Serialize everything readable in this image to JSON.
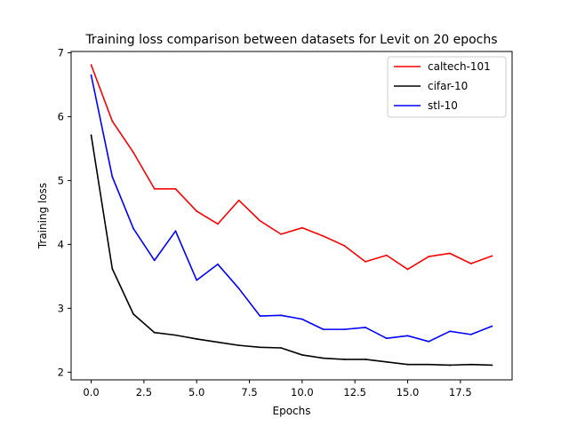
{
  "chart_data": {
    "type": "line",
    "title": "Training loss comparison between datasets for Levit on 20 epochs",
    "xlabel": "Epochs",
    "ylabel": "Training loss",
    "xlim": [
      -0.95,
      19.95
    ],
    "ylim": [
      1.88,
      7.02
    ],
    "xticks": [
      0.0,
      2.5,
      5.0,
      7.5,
      10.0,
      12.5,
      15.0,
      17.5
    ],
    "xtick_labels": [
      "0.0",
      "2.5",
      "5.0",
      "7.5",
      "10.0",
      "12.5",
      "15.0",
      "17.5"
    ],
    "yticks": [
      2,
      3,
      4,
      5,
      6,
      7
    ],
    "ytick_labels": [
      "2",
      "3",
      "4",
      "5",
      "6",
      "7"
    ],
    "grid": false,
    "legend_position": "top-right",
    "x": [
      0,
      1,
      2,
      3,
      4,
      5,
      6,
      7,
      8,
      9,
      10,
      11,
      12,
      13,
      14,
      15,
      16,
      17,
      18,
      19
    ],
    "series": [
      {
        "name": "caltech-101",
        "color": "#ff0000",
        "values": [
          6.81,
          5.93,
          5.44,
          4.87,
          4.87,
          4.52,
          4.32,
          4.69,
          4.37,
          4.16,
          4.26,
          4.13,
          3.98,
          3.73,
          3.83,
          3.61,
          3.81,
          3.86,
          3.7,
          3.82
        ]
      },
      {
        "name": "cifar-10",
        "color": "#000000",
        "values": [
          5.71,
          3.62,
          2.91,
          2.62,
          2.58,
          2.52,
          2.47,
          2.42,
          2.39,
          2.38,
          2.27,
          2.22,
          2.2,
          2.2,
          2.16,
          2.12,
          2.12,
          2.11,
          2.12,
          2.11
        ]
      },
      {
        "name": "stl-10",
        "color": "#0000ff",
        "values": [
          6.65,
          5.06,
          4.25,
          3.75,
          4.21,
          3.44,
          3.69,
          3.31,
          2.88,
          2.89,
          2.83,
          2.67,
          2.67,
          2.7,
          2.53,
          2.57,
          2.48,
          2.64,
          2.59,
          2.72
        ]
      }
    ]
  }
}
